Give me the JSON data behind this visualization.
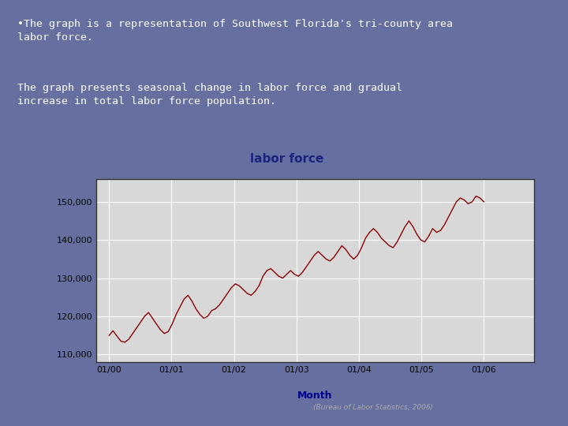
{
  "title": "labor force",
  "xlabel": "Month",
  "ylabel": "",
  "outer_bg": "#6670a0",
  "plot_area_bg": "#d8d8d8",
  "line_color": "#8b0000",
  "title_color": "#1a237e",
  "axis_label_color": "#00008b",
  "tick_label_color": "#000000",
  "yticks": [
    110000,
    120000,
    130000,
    140000,
    150000
  ],
  "xtick_labels": [
    "01/00",
    "01/01",
    "01/02",
    "01/03",
    "01/04",
    "01/05",
    "01/06"
  ],
  "ylim": [
    108000,
    156000
  ],
  "xlim": [
    -0.2,
    6.8
  ],
  "annotation": "(Bureau of Labor Statistics, 2006)",
  "bullet_text_line1": "•The graph is a representation of Southwest Florida's tri-county area\nlabor force.",
  "bullet_text_line2": "The graph presents seasonal change in labor force and gradual\nincrease in total labor force population.",
  "labor_force_data": [
    115000,
    116200,
    114800,
    113500,
    113200,
    114000,
    115500,
    117000,
    118500,
    120000,
    121000,
    119500,
    118000,
    116500,
    115500,
    116000,
    118000,
    120500,
    122500,
    124500,
    125500,
    124000,
    122000,
    120500,
    119500,
    120000,
    121500,
    122000,
    123000,
    124500,
    126000,
    127500,
    128500,
    128000,
    127000,
    126000,
    125500,
    126500,
    128000,
    130500,
    132000,
    132500,
    131500,
    130500,
    130000,
    131000,
    132000,
    131000,
    130500,
    131500,
    133000,
    134500,
    136000,
    137000,
    136000,
    135000,
    134500,
    135500,
    137000,
    138500,
    137500,
    136000,
    135000,
    136000,
    138000,
    140500,
    142000,
    143000,
    142000,
    140500,
    139500,
    138500,
    138000,
    139500,
    141500,
    143500,
    145000,
    143500,
    141500,
    140000,
    139500,
    141000,
    143000,
    142000,
    142500,
    144000,
    146000,
    148000,
    150000,
    151000,
    150500,
    149500,
    150000,
    151500,
    151000,
    150000
  ]
}
